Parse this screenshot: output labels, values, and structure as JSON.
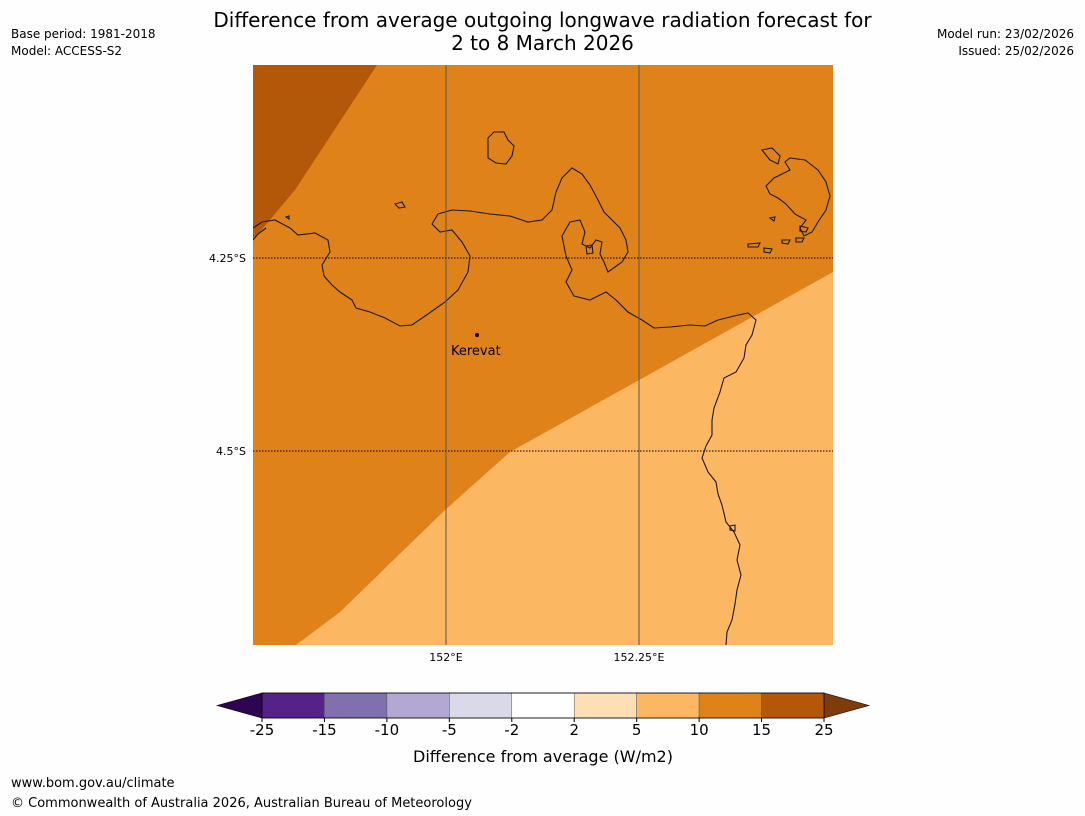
{
  "header": {
    "title_line1": "Difference from average outgoing longwave radiation forecast for",
    "title_line2": "2 to 8 March 2026",
    "base_period": "Base period: 1981-2018",
    "model": "Model: ACCESS-S2",
    "model_run": "Model run: 23/02/2026",
    "issued": "Issued: 25/02/2026"
  },
  "map": {
    "lat_labels": [
      "4.25°S",
      "4.5°S"
    ],
    "lon_labels": [
      "152°E",
      "152.25°E"
    ],
    "place": "Kerevat"
  },
  "colorbar": {
    "ticks": [
      "-25",
      "-15",
      "-10",
      "-5",
      "-2",
      "2",
      "5",
      "10",
      "15",
      "25"
    ],
    "colors": [
      "#552289",
      "#8070ae",
      "#b2a8d2",
      "#d9d9ea",
      "#ffffff",
      "#fddfb5",
      "#fbb762",
      "#e0821a",
      "#b35808"
    ],
    "under_color": "#2d0551",
    "over_color": "#7f3b09",
    "label": "Difference from average (W/m2)"
  },
  "footer": {
    "url": "www.bom.gov.au/climate",
    "copyright": "© Commonwealth of Australia 2026, Australian Bureau of Meteorology"
  }
}
